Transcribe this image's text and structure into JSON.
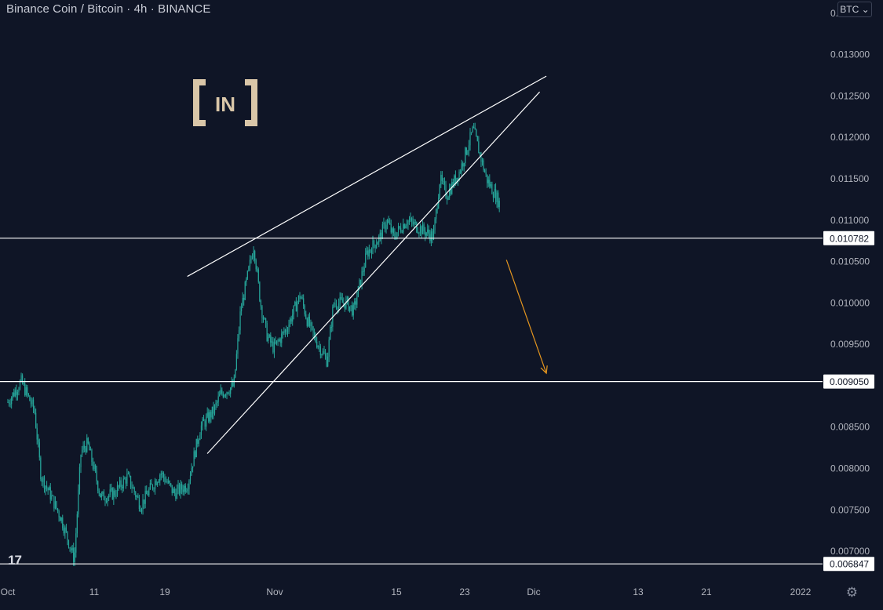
{
  "header": {
    "title": "Binance Coin / Bitcoin · 4h · BINANCE",
    "currency_selector": "BTC"
  },
  "logo": {
    "text": "[IN]"
  },
  "watermark": {
    "text": "17"
  },
  "icons": {
    "settings": "gear-icon",
    "currency_dropdown": "chevron-down-icon"
  },
  "colors": {
    "background": "#0f1526",
    "candle": "#26a69a",
    "trendline": "#ffffff",
    "projection_arrow": "#e5961f",
    "logo": "#d9c6a8"
  },
  "chart_data": {
    "type": "candlestick",
    "title": "Binance Coin / Bitcoin · 4h · BINANCE",
    "x_tick_labels": [
      "Oct",
      "11",
      "19",
      "Nov",
      "15",
      "23",
      "Dic",
      "13",
      "21",
      "2022"
    ],
    "y_tick_labels": [
      "0.013500",
      "0.013000",
      "0.012500",
      "0.012000",
      "0.011500",
      "0.011000",
      "0.010500",
      "0.010000",
      "0.009500",
      "0.008500",
      "0.008000",
      "0.007500",
      "0.007000"
    ],
    "ylim": [
      0.00665,
      0.01366
    ],
    "grid": false,
    "horizontal_levels": [
      {
        "value": 0.010782,
        "label": "0.010782"
      },
      {
        "value": 0.00905,
        "label": "0.009050"
      },
      {
        "value": 0.006847,
        "label": "0.006847"
      }
    ],
    "trendlines": [
      {
        "name": "upper wedge line",
        "start": [
          "2021-10-28",
          0.01032
        ],
        "end": [
          "2021-12-21",
          0.01274
        ]
      },
      {
        "name": "lower wedge line",
        "start": [
          "2021-10-31",
          0.00818
        ],
        "end": [
          "2021-12-20",
          0.01255
        ]
      }
    ],
    "projection": {
      "start": [
        "2021-12-15",
        0.01052
      ],
      "end": [
        "2021-12-21",
        0.00915
      ]
    },
    "price_path": [
      [
        "2021-10-01",
        0.0088
      ],
      [
        "2021-10-03",
        0.00905
      ],
      [
        "2021-10-05",
        0.0087
      ],
      [
        "2021-10-06",
        0.0079
      ],
      [
        "2021-10-07",
        0.00775
      ],
      [
        "2021-10-09",
        0.0074
      ],
      [
        "2021-10-11",
        0.0069
      ],
      [
        "2021-10-12",
        0.0082
      ],
      [
        "2021-10-13",
        0.0083
      ],
      [
        "2021-10-15",
        0.00765
      ],
      [
        "2021-10-17",
        0.0077
      ],
      [
        "2021-10-19",
        0.0079
      ],
      [
        "2021-10-21",
        0.00755
      ],
      [
        "2021-10-22",
        0.0077
      ],
      [
        "2021-10-24",
        0.00795
      ],
      [
        "2021-10-26",
        0.0077
      ],
      [
        "2021-10-28",
        0.0078
      ],
      [
        "2021-10-30",
        0.0085
      ],
      [
        "2021-11-01",
        0.0087
      ],
      [
        "2021-11-02",
        0.0089
      ],
      [
        "2021-11-04",
        0.009
      ],
      [
        "2021-11-05",
        0.0099
      ],
      [
        "2021-11-07",
        0.0107
      ],
      [
        "2021-11-08",
        0.01
      ],
      [
        "2021-11-09",
        0.0096
      ],
      [
        "2021-11-10",
        0.00945
      ],
      [
        "2021-11-12",
        0.0097
      ],
      [
        "2021-11-14",
        0.0101
      ],
      [
        "2021-11-15",
        0.0098
      ],
      [
        "2021-11-16",
        0.0096
      ],
      [
        "2021-11-18",
        0.0093
      ],
      [
        "2021-11-19",
        0.01
      ],
      [
        "2021-11-21",
        0.01
      ],
      [
        "2021-11-22",
        0.0099
      ],
      [
        "2021-11-24",
        0.0106
      ],
      [
        "2021-11-26",
        0.0108
      ],
      [
        "2021-11-27",
        0.011
      ],
      [
        "2021-11-28",
        0.0108
      ],
      [
        "2021-11-30",
        0.011
      ],
      [
        "2021-12-02",
        0.0109
      ],
      [
        "2021-12-04",
        0.0108
      ],
      [
        "2021-12-05",
        0.0115
      ],
      [
        "2021-12-06",
        0.0113
      ],
      [
        "2021-12-08",
        0.0116
      ],
      [
        "2021-12-10",
        0.0121
      ],
      [
        "2021-12-11",
        0.0118
      ],
      [
        "2021-12-12",
        0.0115
      ],
      [
        "2021-12-14",
        0.0112
      ]
    ]
  }
}
